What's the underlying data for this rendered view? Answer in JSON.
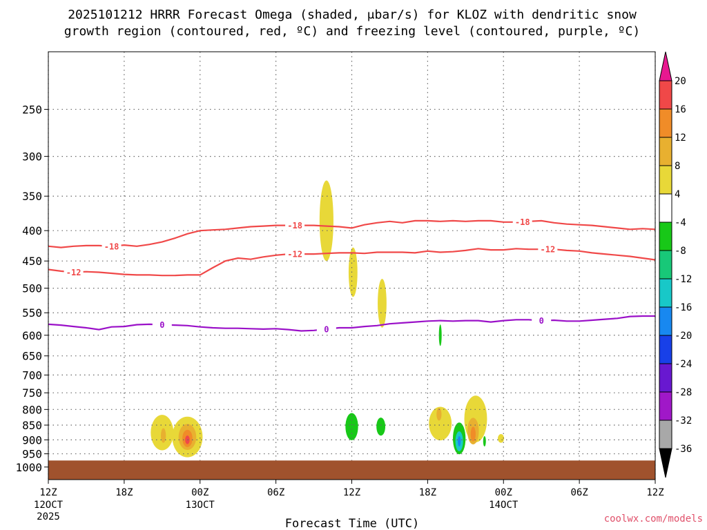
{
  "chart_data": {
    "type": "contour",
    "title_line1": "2025101212 HRRR Forecast Omega (shaded, μbar/s) for KLOZ with dendritic snow",
    "title_line2": "growth region (contoured, red, ºC) and freezing level (contoured, purple, ºC)",
    "xlabel": "Forecast Time (UTC)",
    "credit": "coolwx.com/models",
    "x_ticks": [
      {
        "h": 0,
        "label": "12Z",
        "sub1": "12OCT",
        "sub2": "2025"
      },
      {
        "h": 6,
        "label": "18Z"
      },
      {
        "h": 12,
        "label": "00Z",
        "sub1": "13OCT"
      },
      {
        "h": 18,
        "label": "06Z"
      },
      {
        "h": 24,
        "label": "12Z"
      },
      {
        "h": 30,
        "label": "18Z"
      },
      {
        "h": 36,
        "label": "00Z",
        "sub1": "14OCT"
      },
      {
        "h": 42,
        "label": "06Z"
      },
      {
        "h": 48,
        "label": "12Z"
      }
    ],
    "x_range_hours": [
      0,
      48
    ],
    "y_range_mb": [
      200,
      1050
    ],
    "y_scale": "log",
    "y_ticks": [
      250,
      300,
      350,
      400,
      450,
      500,
      550,
      600,
      650,
      700,
      750,
      800,
      850,
      900,
      950,
      1000
    ],
    "grid": true,
    "colorbar": {
      "levels": [
        -36,
        -32,
        -28,
        -24,
        -20,
        -16,
        -12,
        -8,
        -4,
        4,
        8,
        12,
        16,
        20
      ],
      "label_levels": [
        20,
        16,
        12,
        8,
        4,
        -4,
        -8,
        -12,
        -16,
        -20,
        -24,
        -28,
        -32,
        -36
      ],
      "colors_top_to_bottom": [
        "#f04848",
        "#f08c28",
        "#e8b030",
        "#e8d838",
        "#ffffff",
        "#18c818",
        "#18c878",
        "#18c8c8",
        "#1888f0",
        "#1840e8",
        "#6818d0",
        "#a018c8",
        "#a8a8a8"
      ],
      "over_color": "#e81890",
      "under_color": "#000000"
    },
    "contours": [
      {
        "name": "-18",
        "color": "#f04848",
        "labels": [
          {
            "h": 5.0,
            "text": "-18"
          },
          {
            "h": 19.5,
            "text": "-18"
          },
          {
            "h": 37.5,
            "text": "-18"
          }
        ],
        "points": [
          [
            0,
            425
          ],
          [
            1,
            427
          ],
          [
            2,
            425
          ],
          [
            3,
            424
          ],
          [
            4,
            424
          ],
          [
            5,
            425
          ],
          [
            6,
            423
          ],
          [
            7,
            425
          ],
          [
            8,
            422
          ],
          [
            9,
            418
          ],
          [
            10,
            412
          ],
          [
            11,
            405
          ],
          [
            12,
            400
          ],
          [
            13,
            399
          ],
          [
            14,
            398
          ],
          [
            15,
            396
          ],
          [
            16,
            394
          ],
          [
            17,
            393
          ],
          [
            18,
            392
          ],
          [
            19,
            392
          ],
          [
            20,
            392
          ],
          [
            21,
            392
          ],
          [
            22,
            393
          ],
          [
            23,
            394
          ],
          [
            24,
            396
          ],
          [
            25,
            391
          ],
          [
            26,
            388
          ],
          [
            27,
            386
          ],
          [
            28,
            388
          ],
          [
            29,
            385
          ],
          [
            30,
            385
          ],
          [
            31,
            386
          ],
          [
            32,
            385
          ],
          [
            33,
            386
          ],
          [
            34,
            385
          ],
          [
            35,
            385
          ],
          [
            36,
            387
          ],
          [
            37,
            387
          ],
          [
            38,
            386
          ],
          [
            39,
            385
          ],
          [
            40,
            388
          ],
          [
            41,
            390
          ],
          [
            42,
            391
          ],
          [
            43,
            392
          ],
          [
            44,
            394
          ],
          [
            45,
            396
          ],
          [
            46,
            398
          ],
          [
            47,
            397
          ],
          [
            48,
            398
          ]
        ]
      },
      {
        "name": "-12",
        "color": "#f04848",
        "labels": [
          {
            "h": 2.0,
            "text": "-12"
          },
          {
            "h": 19.5,
            "text": "-12"
          },
          {
            "h": 39.5,
            "text": "-12"
          }
        ],
        "points": [
          [
            0,
            465
          ],
          [
            1,
            468
          ],
          [
            2,
            470
          ],
          [
            3,
            469
          ],
          [
            4,
            470
          ],
          [
            5,
            472
          ],
          [
            6,
            474
          ],
          [
            7,
            475
          ],
          [
            8,
            475
          ],
          [
            9,
            476
          ],
          [
            10,
            476
          ],
          [
            11,
            475
          ],
          [
            12,
            475
          ],
          [
            13,
            462
          ],
          [
            14,
            450
          ],
          [
            15,
            445
          ],
          [
            16,
            447
          ],
          [
            17,
            443
          ],
          [
            18,
            440
          ],
          [
            19,
            438
          ],
          [
            20,
            438
          ],
          [
            21,
            438
          ],
          [
            22,
            437
          ],
          [
            23,
            436
          ],
          [
            24,
            436
          ],
          [
            25,
            437
          ],
          [
            26,
            435
          ],
          [
            27,
            435
          ],
          [
            28,
            435
          ],
          [
            29,
            436
          ],
          [
            30,
            433
          ],
          [
            31,
            435
          ],
          [
            32,
            434
          ],
          [
            33,
            432
          ],
          [
            34,
            429
          ],
          [
            35,
            431
          ],
          [
            36,
            431
          ],
          [
            37,
            429
          ],
          [
            38,
            430
          ],
          [
            39,
            430
          ],
          [
            40,
            430
          ],
          [
            41,
            432
          ],
          [
            42,
            433
          ],
          [
            43,
            436
          ],
          [
            44,
            438
          ],
          [
            45,
            440
          ],
          [
            46,
            442
          ],
          [
            47,
            445
          ],
          [
            48,
            448
          ]
        ]
      },
      {
        "name": "0",
        "color": "#9a10c8",
        "labels": [
          {
            "h": 9.0,
            "text": "0"
          },
          {
            "h": 22.0,
            "text": "0"
          },
          {
            "h": 39.0,
            "text": "0"
          }
        ],
        "points": [
          [
            0,
            575
          ],
          [
            1,
            577
          ],
          [
            2,
            580
          ],
          [
            3,
            583
          ],
          [
            4,
            587
          ],
          [
            5,
            581
          ],
          [
            6,
            580
          ],
          [
            7,
            576
          ],
          [
            8,
            575
          ],
          [
            9,
            576
          ],
          [
            10,
            577
          ],
          [
            11,
            578
          ],
          [
            12,
            581
          ],
          [
            13,
            583
          ],
          [
            14,
            584
          ],
          [
            15,
            584
          ],
          [
            16,
            585
          ],
          [
            17,
            586
          ],
          [
            18,
            585
          ],
          [
            19,
            587
          ],
          [
            20,
            590
          ],
          [
            21,
            589
          ],
          [
            22,
            586
          ],
          [
            23,
            583
          ],
          [
            24,
            583
          ],
          [
            25,
            580
          ],
          [
            26,
            578
          ],
          [
            27,
            574
          ],
          [
            28,
            572
          ],
          [
            29,
            570
          ],
          [
            30,
            568
          ],
          [
            31,
            567
          ],
          [
            32,
            568
          ],
          [
            33,
            567
          ],
          [
            34,
            567
          ],
          [
            35,
            570
          ],
          [
            36,
            567
          ],
          [
            37,
            565
          ],
          [
            38,
            565
          ],
          [
            39,
            567
          ],
          [
            40,
            566
          ],
          [
            41,
            568
          ],
          [
            42,
            568
          ],
          [
            43,
            566
          ],
          [
            44,
            564
          ],
          [
            45,
            562
          ],
          [
            46,
            558
          ],
          [
            47,
            557
          ],
          [
            48,
            557
          ]
        ]
      }
    ],
    "omega_features": [
      {
        "h": 22.0,
        "p": 385,
        "rh": 0.55,
        "rp": 60,
        "color": "#e8d838"
      },
      {
        "h": 24.1,
        "p": 470,
        "rh": 0.35,
        "rp": 45,
        "color": "#e8d838"
      },
      {
        "h": 26.4,
        "p": 530,
        "rh": 0.35,
        "rp": 50,
        "color": "#e8d838"
      },
      {
        "h": 9.0,
        "p": 875,
        "rh": 0.9,
        "rp": 60,
        "color": "#e8d838"
      },
      {
        "h": 11.0,
        "p": 890,
        "rh": 1.2,
        "rp": 70,
        "color": "#e8d838"
      },
      {
        "h": 11.0,
        "p": 890,
        "rh": 0.7,
        "rp": 45,
        "color": "#e8b030"
      },
      {
        "h": 11.0,
        "p": 895,
        "rh": 0.4,
        "rp": 30,
        "color": "#f08c28"
      },
      {
        "h": 11.0,
        "p": 900,
        "rh": 0.18,
        "rp": 15,
        "color": "#f04848"
      },
      {
        "h": 9.1,
        "p": 885,
        "rh": 0.2,
        "rp": 25,
        "color": "#e8b030"
      },
      {
        "h": 24.0,
        "p": 855,
        "rh": 0.5,
        "rp": 45,
        "color": "#18c818"
      },
      {
        "h": 26.3,
        "p": 855,
        "rh": 0.35,
        "rp": 30,
        "color": "#18c818"
      },
      {
        "h": 31.0,
        "p": 845,
        "rh": 0.9,
        "rp": 55,
        "color": "#e8d838"
      },
      {
        "h": 30.9,
        "p": 815,
        "rh": 0.2,
        "rp": 20,
        "color": "#e8b030"
      },
      {
        "h": 33.8,
        "p": 830,
        "rh": 0.9,
        "rp": 75,
        "color": "#e8d838"
      },
      {
        "h": 33.6,
        "p": 870,
        "rh": 0.45,
        "rp": 45,
        "color": "#e8b030"
      },
      {
        "h": 33.6,
        "p": 880,
        "rh": 0.2,
        "rp": 25,
        "color": "#f08c28"
      },
      {
        "h": 32.5,
        "p": 895,
        "rh": 0.5,
        "rp": 55,
        "color": "#18c818"
      },
      {
        "h": 32.5,
        "p": 905,
        "rh": 0.3,
        "rp": 35,
        "color": "#18c8c8"
      },
      {
        "h": 32.5,
        "p": 905,
        "rh": 0.12,
        "rp": 18,
        "color": "#1888f0"
      },
      {
        "h": 34.5,
        "p": 905,
        "rh": 0.1,
        "rp": 18,
        "color": "#18c818"
      },
      {
        "h": 35.8,
        "p": 895,
        "rh": 0.25,
        "rp": 15,
        "color": "#e8d838"
      },
      {
        "h": 31.0,
        "p": 600,
        "rh": 0.1,
        "rp": 25,
        "color": "#18c818"
      }
    ],
    "terrain": {
      "color": "#a0522d",
      "top_mb": 975
    }
  }
}
